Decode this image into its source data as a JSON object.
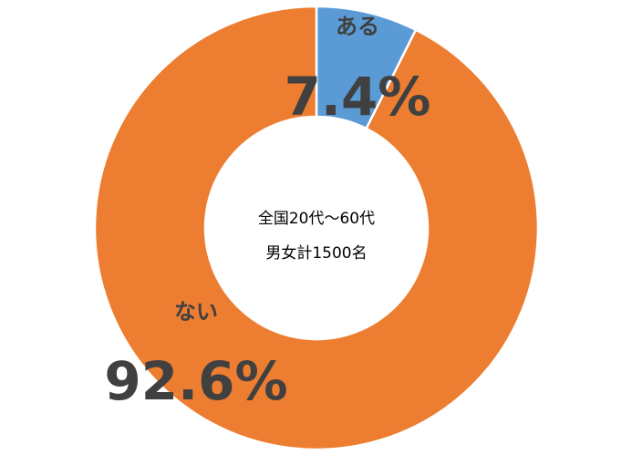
{
  "chart_data": {
    "type": "donut",
    "categories": [
      "ある",
      "ない"
    ],
    "values": [
      7.4,
      92.6
    ],
    "value_labels": [
      "7.4%",
      "92.6%"
    ],
    "colors": [
      "#5b9bd5",
      "#ed7d31"
    ],
    "center_text": [
      "全国20代～60代",
      "男女計1500名"
    ]
  }
}
